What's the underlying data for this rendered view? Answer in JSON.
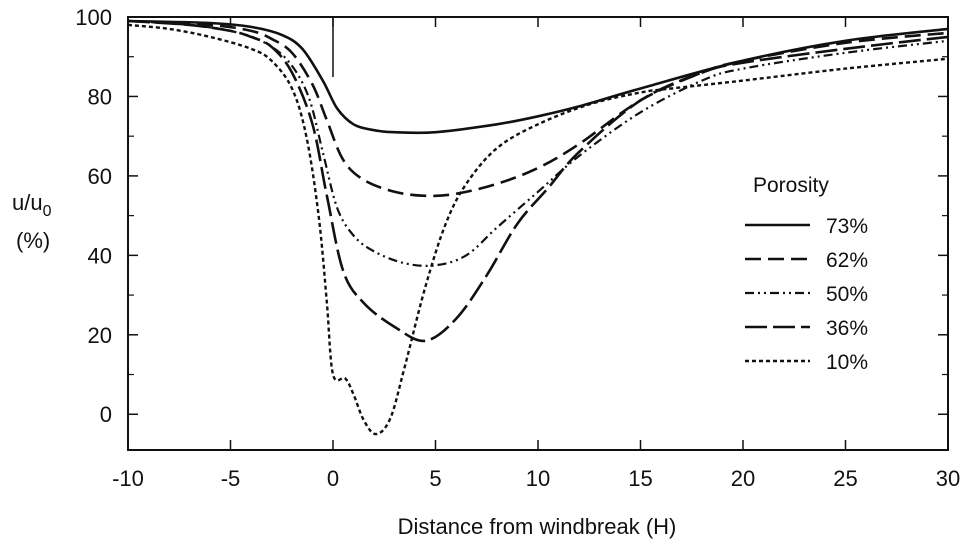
{
  "chart_data": {
    "type": "line",
    "title": "",
    "xlabel": "Distance from windbreak (H)",
    "ylabel_main": "u/u",
    "ylabel_sub": "0",
    "ylabel_unit": "(%)",
    "xlim": [
      -10,
      30
    ],
    "ylim": [
      -9,
      100
    ],
    "x_ticks": [
      "-10",
      "-5",
      "0",
      "5",
      "10",
      "15",
      "20",
      "25",
      "30"
    ],
    "y_ticks": [
      "0",
      "20",
      "40",
      "60",
      "80",
      "100"
    ],
    "grid": false,
    "legend": {
      "title": "Porosity",
      "position": "right"
    },
    "series": [
      {
        "name": "73%",
        "style": "solid",
        "points": [
          [
            -10,
            99
          ],
          [
            -6,
            98.5
          ],
          [
            -4,
            97.5
          ],
          [
            -2.5,
            95.5
          ],
          [
            -1.5,
            92
          ],
          [
            -0.5,
            84
          ],
          [
            0.2,
            77
          ],
          [
            1,
            73
          ],
          [
            2,
            71.5
          ],
          [
            3,
            71
          ],
          [
            5,
            71
          ],
          [
            8,
            73
          ],
          [
            10,
            75
          ],
          [
            12,
            77.5
          ],
          [
            15,
            82
          ],
          [
            20,
            89
          ],
          [
            25,
            94
          ],
          [
            30,
            97
          ]
        ]
      },
      {
        "name": "62%",
        "style": "dash",
        "points": [
          [
            -10,
            99
          ],
          [
            -6,
            98
          ],
          [
            -4,
            96.5
          ],
          [
            -3,
            94.5
          ],
          [
            -2,
            91
          ],
          [
            -1,
            83
          ],
          [
            -0.3,
            74
          ],
          [
            0.5,
            64
          ],
          [
            1.5,
            59
          ],
          [
            3,
            56
          ],
          [
            4.5,
            55
          ],
          [
            6,
            55.5
          ],
          [
            8,
            58
          ],
          [
            10,
            62
          ],
          [
            12,
            68
          ],
          [
            15,
            79
          ],
          [
            18,
            86
          ],
          [
            20,
            89
          ],
          [
            25,
            93.5
          ],
          [
            30,
            96
          ]
        ]
      },
      {
        "name": "50%",
        "style": "dashdotdot",
        "points": [
          [
            -10,
            99
          ],
          [
            -7,
            98
          ],
          [
            -5,
            96.5
          ],
          [
            -3.5,
            94
          ],
          [
            -2.2,
            89
          ],
          [
            -1.2,
            80
          ],
          [
            -0.5,
            66
          ],
          [
            0.2,
            52
          ],
          [
            1,
            45
          ],
          [
            2,
            41
          ],
          [
            3.5,
            38
          ],
          [
            5,
            37.5
          ],
          [
            6.5,
            40
          ],
          [
            8,
            47
          ],
          [
            10,
            56
          ],
          [
            12,
            65
          ],
          [
            15,
            76
          ],
          [
            18,
            84
          ],
          [
            20,
            87
          ],
          [
            25,
            91
          ],
          [
            30,
            94
          ]
        ]
      },
      {
        "name": "36%",
        "style": "longdash",
        "points": [
          [
            -10,
            99
          ],
          [
            -7,
            98
          ],
          [
            -5,
            96.5
          ],
          [
            -4,
            95
          ],
          [
            -3,
            92.5
          ],
          [
            -2,
            86
          ],
          [
            -1,
            73
          ],
          [
            -0.3,
            55
          ],
          [
            0.5,
            36
          ],
          [
            1.5,
            28
          ],
          [
            3,
            22
          ],
          [
            4.5,
            18.5
          ],
          [
            6,
            24
          ],
          [
            7.5,
            35
          ],
          [
            9,
            48
          ],
          [
            10.5,
            57
          ],
          [
            12,
            66
          ],
          [
            15,
            79
          ],
          [
            18,
            86
          ],
          [
            20,
            88.5
          ],
          [
            25,
            92
          ],
          [
            30,
            95
          ]
        ]
      },
      {
        "name": "10%",
        "style": "dot",
        "points": [
          [
            -10,
            98
          ],
          [
            -8,
            97
          ],
          [
            -6,
            95
          ],
          [
            -4,
            92
          ],
          [
            -3,
            89
          ],
          [
            -2,
            82
          ],
          [
            -1.3,
            70
          ],
          [
            -0.7,
            50
          ],
          [
            -0.3,
            28
          ],
          [
            0,
            10
          ],
          [
            0.6,
            9
          ],
          [
            1,
            5
          ],
          [
            1.5,
            -1.5
          ],
          [
            2.1,
            -5
          ],
          [
            2.8,
            -1
          ],
          [
            3.5,
            12
          ],
          [
            4.5,
            32
          ],
          [
            5.5,
            48
          ],
          [
            6.5,
            58
          ],
          [
            8,
            67
          ],
          [
            10,
            73
          ],
          [
            12.5,
            78
          ],
          [
            15,
            81
          ],
          [
            16.5,
            82
          ],
          [
            20,
            84
          ],
          [
            25,
            87
          ],
          [
            30,
            89.5
          ]
        ]
      }
    ]
  }
}
